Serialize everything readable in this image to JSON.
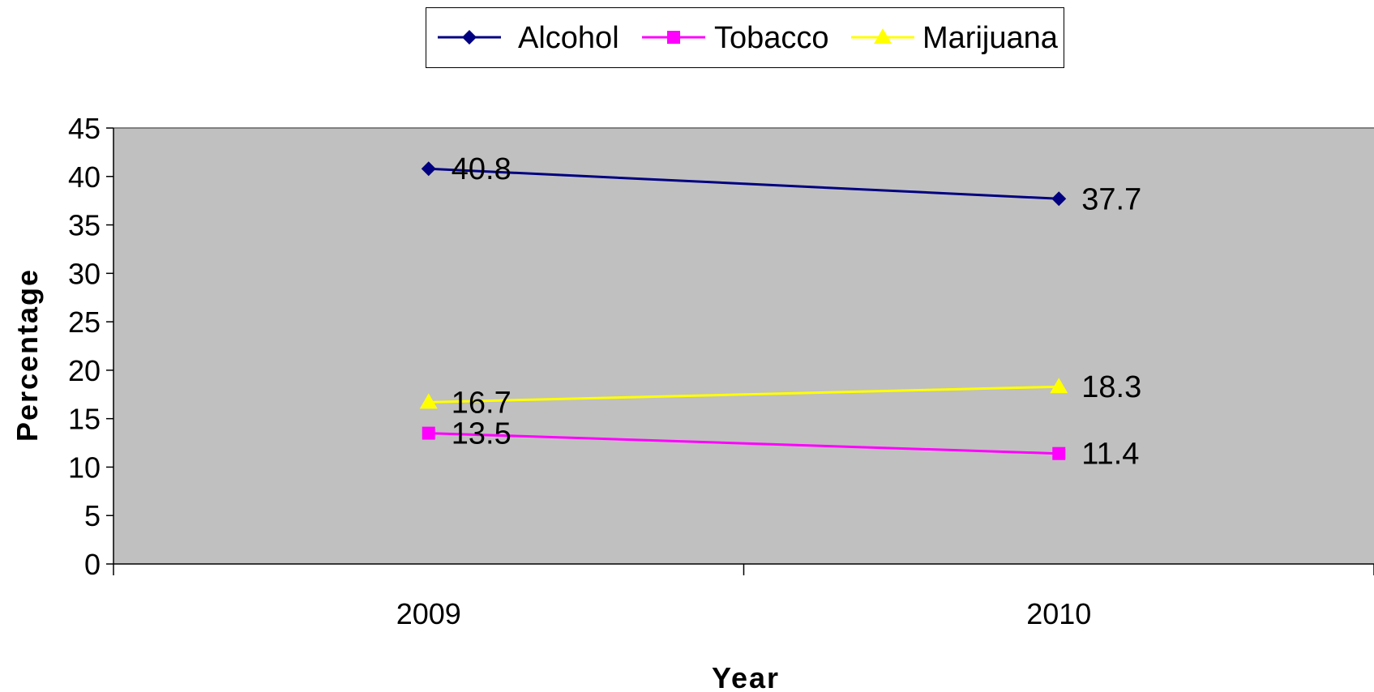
{
  "chart_data": {
    "type": "line",
    "categories": [
      "2009",
      "2010"
    ],
    "series": [
      {
        "name": "Alcohol",
        "values": [
          40.8,
          37.7
        ],
        "color": "#000080",
        "marker": "diamond"
      },
      {
        "name": "Tobacco",
        "values": [
          13.5,
          11.4
        ],
        "color": "#ff00ff",
        "marker": "square"
      },
      {
        "name": "Marijuana",
        "values": [
          16.7,
          18.3
        ],
        "color": "#ffff00",
        "marker": "triangle"
      }
    ],
    "data_labels": [
      [
        "40.8",
        "37.7"
      ],
      [
        "13.5",
        "11.4"
      ],
      [
        "16.7",
        "18.3"
      ]
    ],
    "title": "",
    "xlabel": "Year",
    "ylabel": "Percentage",
    "ylim": [
      0,
      45
    ],
    "yticks": [
      "0",
      "5",
      "10",
      "15",
      "20",
      "25",
      "30",
      "35",
      "40",
      "45"
    ],
    "plot_background": "#c0c0c0",
    "grid": false,
    "legend_position": "top"
  }
}
